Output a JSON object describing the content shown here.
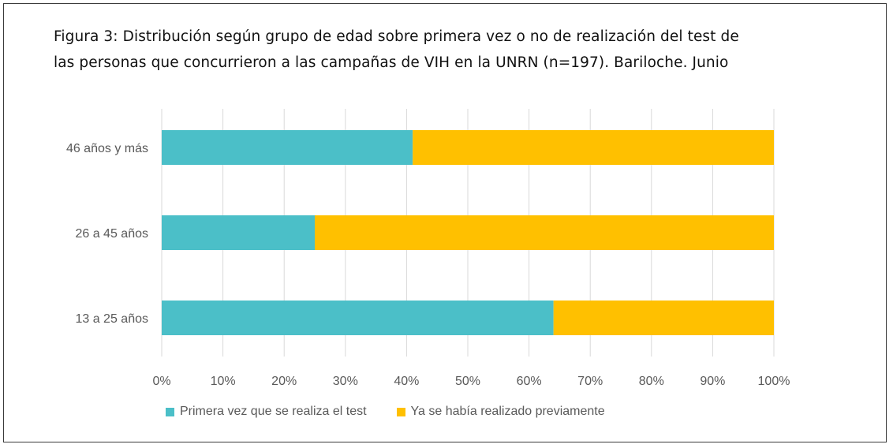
{
  "title_lines": [
    "Figura 3: Distribución según grupo de edad sobre primera vez o no de realización del test de",
    "las personas que concurrieron a las campañas de VIH en la UNRN (n=197). Bariloche. Junio"
  ],
  "chart_data": {
    "type": "bar",
    "orientation": "horizontal",
    "stacked": "percent",
    "title": "Figura 3: Distribución según grupo de edad sobre primera vez o no de realización del test de las personas que concurrieron a las campañas de VIH en la UNRN (n=197). Bariloche. Junio",
    "categories": [
      "46 años y más",
      "26 a 45 años",
      "13 a 25 años"
    ],
    "series": [
      {
        "name": "Primera vez que se realiza el test",
        "color": "#4BBFC8",
        "values": [
          41,
          25,
          64
        ]
      },
      {
        "name": "Ya se había realizado previamente",
        "color": "#FFC000",
        "values": [
          59,
          75,
          36
        ]
      }
    ],
    "xlim": [
      0,
      100
    ],
    "x_ticks": [
      0,
      10,
      20,
      30,
      40,
      50,
      60,
      70,
      80,
      90,
      100
    ],
    "x_tick_labels": [
      "0%",
      "10%",
      "20%",
      "30%",
      "40%",
      "50%",
      "60%",
      "70%",
      "80%",
      "90%",
      "100%"
    ],
    "grid": "vertical",
    "legend": "bottom-left"
  }
}
